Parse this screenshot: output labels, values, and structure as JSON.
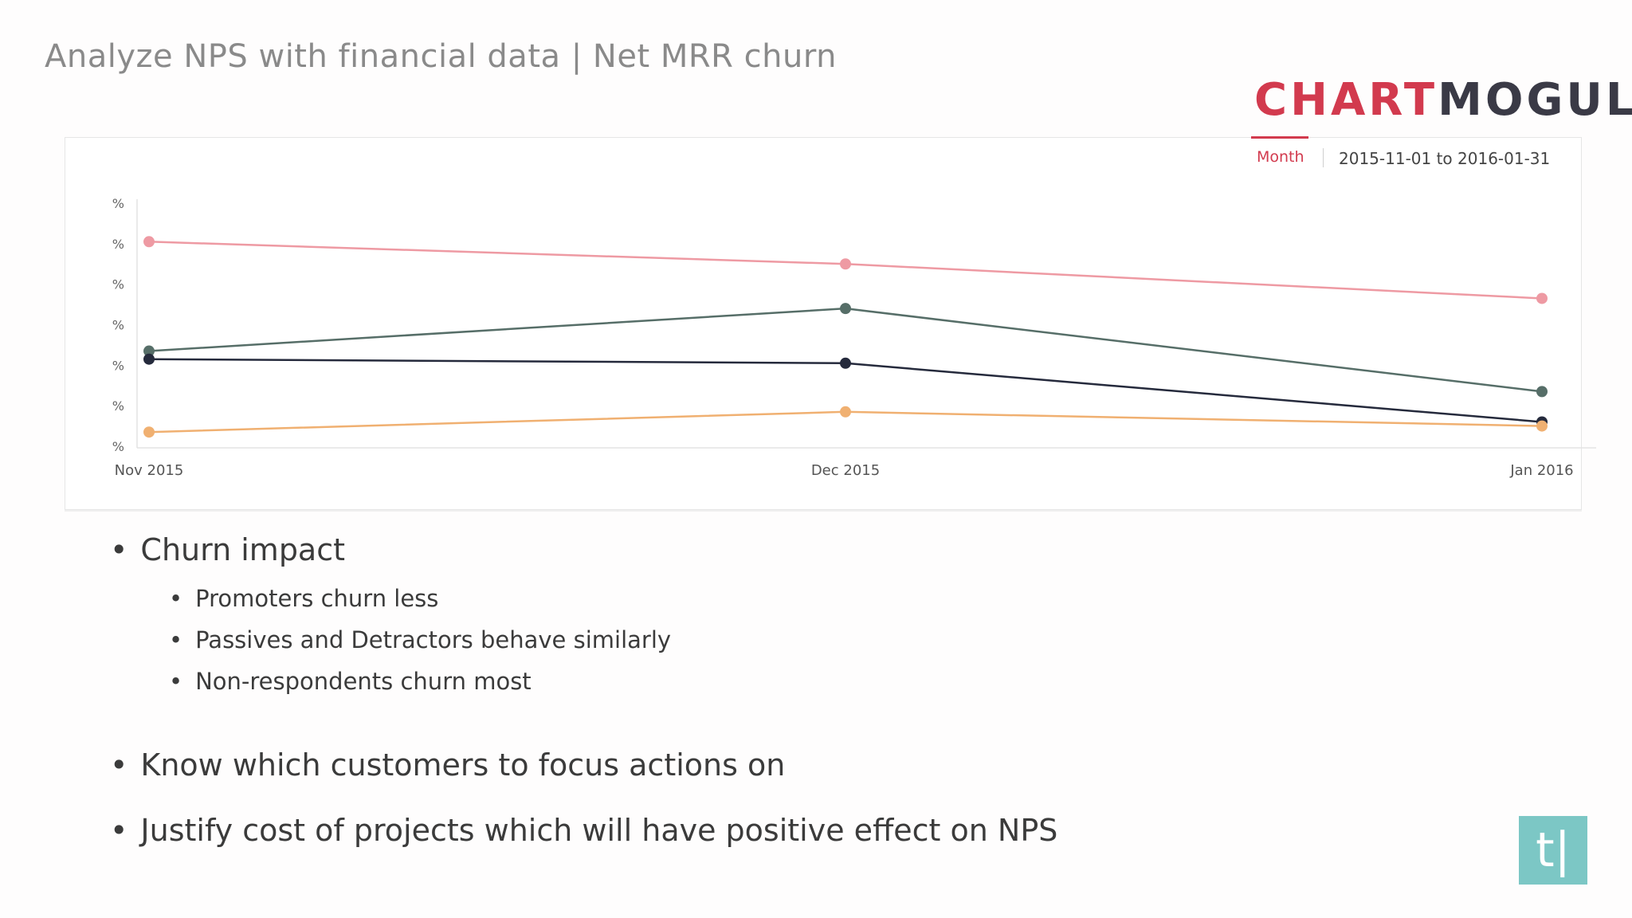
{
  "slide": {
    "title": "Analyze NPS with financial data | Net MRR churn"
  },
  "logo": {
    "part_a": "CHART",
    "letter_m": "M",
    "letter_o": "O",
    "part_c": "GUL"
  },
  "toolbar": {
    "interval": "Month",
    "date_range": "2015-11-01 to 2016-01-31"
  },
  "chart_data": {
    "type": "line",
    "categories": [
      "Nov 2015",
      "Dec 2015",
      "Jan 2016"
    ],
    "y_tick_labels": [
      "%",
      "%",
      "%",
      "%",
      "%",
      "%",
      "%"
    ],
    "y_tick_levels": [
      6,
      5,
      4,
      3,
      2,
      1,
      0
    ],
    "ylim": [
      0,
      6
    ],
    "grid": false,
    "legend": "none",
    "series": [
      {
        "color": "#ee9aa3",
        "values": [
          5.05,
          4.5,
          3.65
        ]
      },
      {
        "color": "#566e68",
        "values": [
          2.35,
          3.4,
          1.35
        ]
      },
      {
        "color": "#252a3c",
        "values": [
          2.15,
          2.05,
          0.6
        ]
      },
      {
        "color": "#f0b071",
        "values": [
          0.35,
          0.85,
          0.5
        ]
      }
    ]
  },
  "bullets": {
    "dot": "•",
    "items": [
      {
        "text": "Churn impact",
        "level": 1
      },
      {
        "text": "Promoters churn less",
        "level": 2
      },
      {
        "text": "Passives and Detractors behave similarly",
        "level": 2
      },
      {
        "text": "Non-respondents churn most",
        "level": 2
      },
      {
        "text": "Know which customers to focus actions on",
        "level": 1
      },
      {
        "text": "Justify cost of projects which will have positive effect on NPS",
        "level": 1
      }
    ]
  },
  "badge": {
    "text": "t|",
    "color": "#7cc7c5"
  }
}
